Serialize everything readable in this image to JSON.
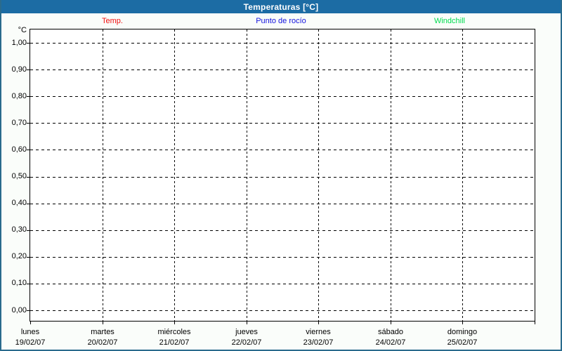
{
  "header": {
    "title": "Temperaturas [°C]"
  },
  "legend": {
    "items": [
      {
        "label": "Temp.",
        "color": "#f01010"
      },
      {
        "label": "Punto de rocío",
        "color": "#1212de"
      },
      {
        "label": "Windchill",
        "color": "#00dc50"
      }
    ]
  },
  "chart_data": {
    "type": "line",
    "title": "Temperaturas [°C]",
    "ylabel": "°C",
    "xlabel": "",
    "ylim": [
      0.0,
      1.0
    ],
    "ytick_step": 0.1,
    "ytick_labels": [
      "1,00",
      "0,90",
      "0,80",
      "0,70",
      "0,60",
      "0,50",
      "0,40",
      "0,30",
      "0,20",
      "0,10",
      "0,00"
    ],
    "x_categories": [
      {
        "day": "lunes",
        "date": "19/02/07"
      },
      {
        "day": "martes",
        "date": "20/02/07"
      },
      {
        "day": "miércoles",
        "date": "21/02/07"
      },
      {
        "day": "jueves",
        "date": "22/02/07"
      },
      {
        "day": "viernes",
        "date": "23/02/07"
      },
      {
        "day": "sábado",
        "date": "24/02/07"
      },
      {
        "day": "domingo",
        "date": "25/02/07"
      }
    ],
    "series": [
      {
        "name": "Temp.",
        "color": "#f01010",
        "values": []
      },
      {
        "name": "Punto de rocío",
        "color": "#1212de",
        "values": []
      },
      {
        "name": "Windchill",
        "color": "#00dc50",
        "values": []
      }
    ],
    "grid": "dashed-both-axes",
    "legend_position": "top",
    "colors": {
      "titlebar": "#1c6ca4",
      "title_text": "#ffffff",
      "frame": "#000000",
      "window_border": "#2a6b8d",
      "background": "#fafdfa",
      "plot_background": "#ffffff"
    }
  }
}
